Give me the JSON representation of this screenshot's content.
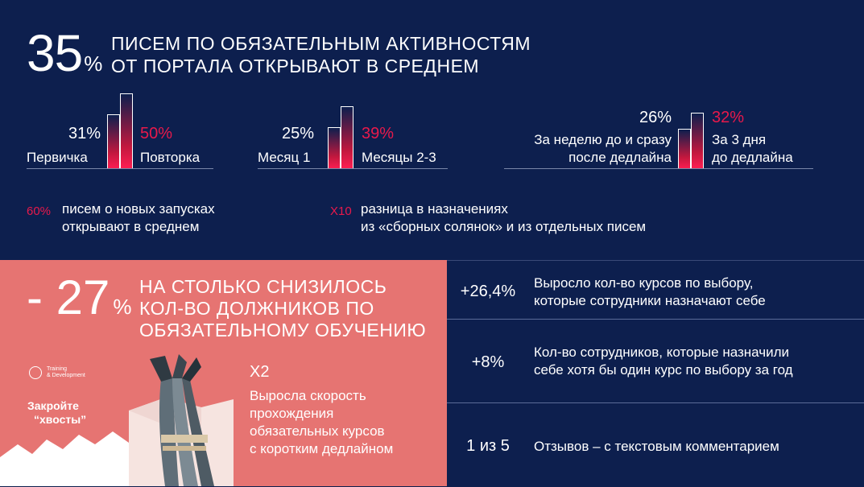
{
  "top": {
    "headline_value": "35",
    "headline_unit": "%",
    "headline_line1": "ПИСЕМ ПО ОБЯЗАТЕЛЬНЫМ АКТИВНОСТЯМ",
    "headline_line2": "ОТ ПОРТАЛА ОТКРЫВАЮТ В СРЕДНЕМ"
  },
  "comparisons": [
    {
      "left_value": "31%",
      "left_label": "Первичка",
      "right_value": "50%",
      "right_label": "Повторка",
      "left_pct": 31,
      "right_pct": 50
    },
    {
      "left_value": "25%",
      "left_label": "Месяц 1",
      "right_value": "39%",
      "right_label": "Месяцы 2-3",
      "left_pct": 25,
      "right_pct": 39
    },
    {
      "left_value": "26%",
      "left_label_line1": "За неделю до и сразу",
      "left_label_line2": "после дедлайна",
      "right_value": "32%",
      "right_label_line1": "За 3 дня",
      "right_label_line2": "до дедлайна",
      "left_pct": 26,
      "right_pct": 32
    }
  ],
  "notes": [
    {
      "tag": "60%",
      "line1": "писем о новых запусках",
      "line2": "открывают в среднем"
    },
    {
      "tag": "Х10",
      "line1": "разница в назначениях",
      "line2": "из «сборных солянок» и из отдельных писем"
    }
  ],
  "bottom": {
    "main_value": "- 27",
    "main_unit": "%",
    "headline_line1": "НА СТОЛЬКО СНИЗИЛОСЬ",
    "headline_line2": "КОЛ-ВО ДОЛЖНИКОВ ПО",
    "headline_line3": "ОБЯЗАТЕЛЬНОМУ ОБУЧЕНИЮ",
    "logo_text_line1": "Training",
    "logo_text_line2": "& Development",
    "poster_line1": "Закройте",
    "poster_line2": "“хвосты”",
    "x2_value": "Х2",
    "x2_line1": "Выросла скорость",
    "x2_line2": "прохождения",
    "x2_line3": "обязательных курсов",
    "x2_line4": "с коротким дедлайном"
  },
  "right_stats": [
    {
      "value": "+26,4%",
      "line1": "Выросло кол-во курсов по выбору,",
      "line2": "которые сотрудники назначают себе"
    },
    {
      "value": "+8%",
      "line1": "Кол-во сотрудников, которые назначили",
      "line2": "себе хотя бы один курс по выбору за год"
    },
    {
      "value": "1 из 5",
      "line1": "Отзывов – с текстовым комментарием",
      "line2": ""
    }
  ],
  "colors": {
    "background": "#0d1f4e",
    "accent": "#e8194b",
    "panel": "#e67472"
  }
}
